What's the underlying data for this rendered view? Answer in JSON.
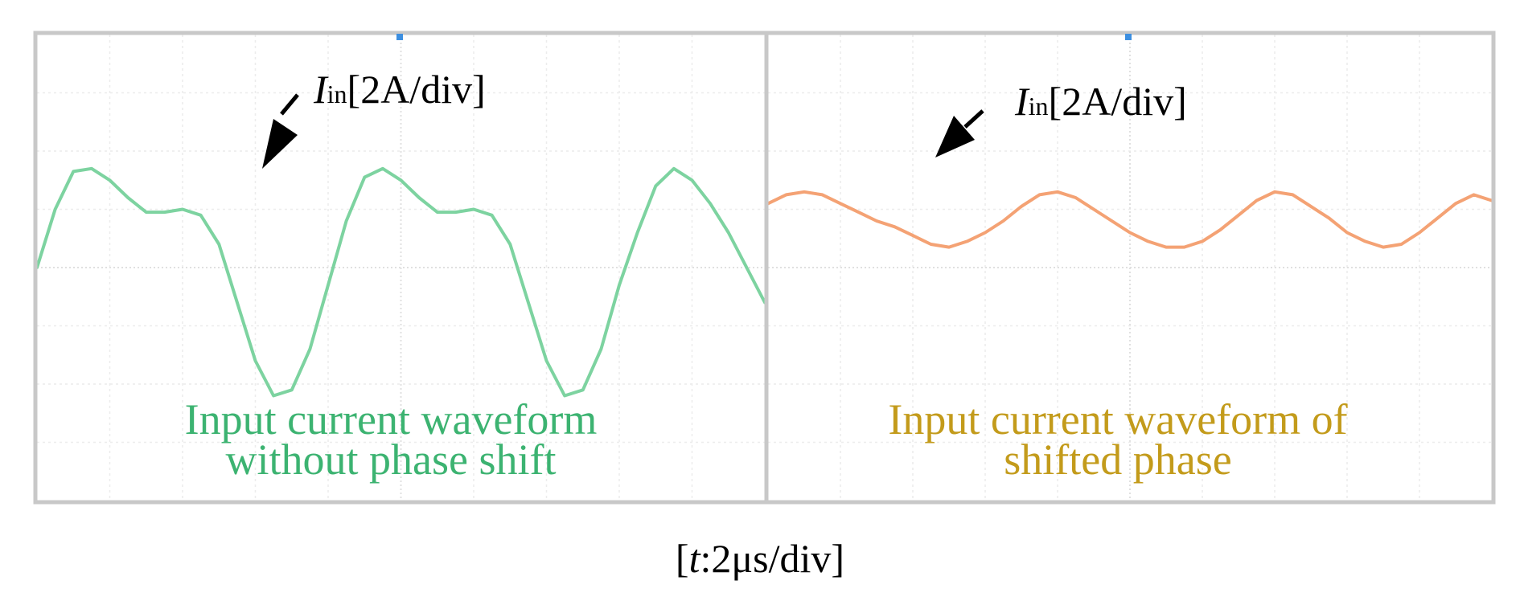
{
  "chart_data": [
    {
      "type": "line",
      "title": "",
      "annotation": {
        "symbol": "I",
        "subscript": "in",
        "scale": "[2A/div]"
      },
      "caption_lines": [
        "Input current waveform",
        "without phase shift"
      ],
      "color": "#7dd3a0",
      "caption_color": "#3cb371",
      "x_divisions": 10,
      "y_divisions": 8,
      "xlim": [
        0,
        10
      ],
      "ylim": [
        -4,
        4
      ],
      "series": [
        {
          "x": [
            0,
            0.25,
            0.5,
            0.75,
            1.0,
            1.25,
            1.5,
            1.75,
            2.0,
            2.25,
            2.5,
            2.75,
            3.0,
            3.25,
            3.5,
            3.75,
            4.0,
            4.25,
            4.5,
            4.75,
            5.0,
            5.25,
            5.5,
            5.75,
            6.0,
            6.25,
            6.5,
            6.75,
            7.0,
            7.25,
            7.5,
            7.75,
            8.0,
            8.25,
            8.5,
            8.75,
            9.0,
            9.25,
            9.5,
            9.75,
            10.0
          ],
          "values": [
            0.0,
            1.0,
            1.65,
            1.7,
            1.5,
            1.2,
            0.95,
            0.95,
            1.0,
            0.9,
            0.4,
            -0.6,
            -1.6,
            -2.2,
            -2.1,
            -1.4,
            -0.3,
            0.8,
            1.55,
            1.7,
            1.5,
            1.2,
            0.95,
            0.95,
            1.0,
            0.9,
            0.4,
            -0.6,
            -1.6,
            -2.2,
            -2.1,
            -1.4,
            -0.3,
            0.6,
            1.4,
            1.7,
            1.5,
            1.1,
            0.6,
            0.0,
            -0.6
          ]
        }
      ]
    },
    {
      "type": "line",
      "title": "",
      "annotation": {
        "symbol": "I",
        "subscript": "in",
        "scale": "[2A/div]"
      },
      "caption_lines": [
        "Input current waveform of",
        "shifted phase"
      ],
      "color": "#f4a274",
      "caption_color": "#c39b1b",
      "x_divisions": 10,
      "y_divisions": 8,
      "xlim": [
        0,
        10
      ],
      "ylim": [
        -4,
        4
      ],
      "series": [
        {
          "x": [
            0,
            0.25,
            0.5,
            0.75,
            1.0,
            1.25,
            1.5,
            1.75,
            2.0,
            2.25,
            2.5,
            2.75,
            3.0,
            3.25,
            3.5,
            3.75,
            4.0,
            4.25,
            4.5,
            4.75,
            5.0,
            5.25,
            5.5,
            5.75,
            6.0,
            6.25,
            6.5,
            6.75,
            7.0,
            7.25,
            7.5,
            7.75,
            8.0,
            8.25,
            8.5,
            8.75,
            9.0,
            9.25,
            9.5,
            9.75,
            10.0
          ],
          "values": [
            1.1,
            1.25,
            1.3,
            1.25,
            1.1,
            0.95,
            0.8,
            0.7,
            0.55,
            0.4,
            0.35,
            0.45,
            0.6,
            0.8,
            1.05,
            1.25,
            1.3,
            1.2,
            1.0,
            0.8,
            0.6,
            0.45,
            0.35,
            0.35,
            0.45,
            0.65,
            0.9,
            1.15,
            1.3,
            1.25,
            1.05,
            0.85,
            0.6,
            0.45,
            0.35,
            0.4,
            0.6,
            0.85,
            1.1,
            1.25,
            1.15
          ]
        }
      ]
    }
  ],
  "timebase": {
    "symbol": "t",
    "scale": ":2μs/div",
    "open": "[",
    "close": "]"
  }
}
